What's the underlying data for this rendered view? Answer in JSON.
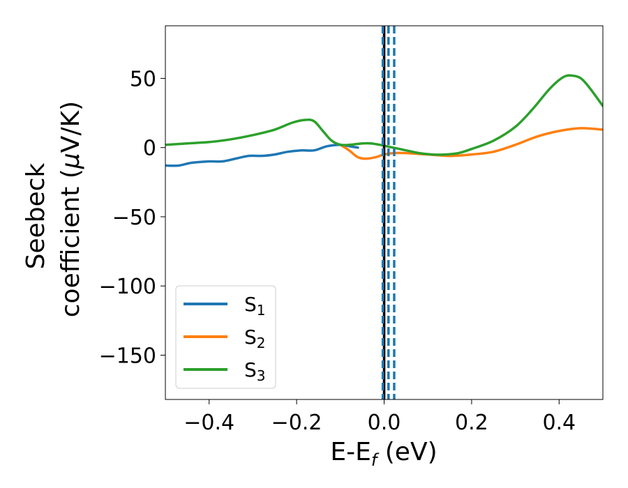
{
  "chart_data": {
    "type": "line",
    "xlabel": "E-E",
    "xlabel_sub": "f",
    "xlabel_unit": " (eV)",
    "ylabel_line1": "Seebeck",
    "ylabel_line2_prefix": "coefficient  (",
    "ylabel_mu": "μ",
    "ylabel_line2_suffix": "V/K)",
    "xlim": [
      -0.5,
      0.5
    ],
    "ylim": [
      -182,
      88
    ],
    "xticks": [
      -0.4,
      -0.2,
      0.0,
      0.2,
      0.4
    ],
    "xtick_labels": [
      "−0.4",
      "−0.2",
      "0.0",
      "0.2",
      "0.4"
    ],
    "yticks": [
      50,
      0,
      -50,
      -100,
      -150
    ],
    "ytick_labels": [
      "50",
      "0",
      "−50",
      "−100",
      "−150"
    ],
    "grid": false,
    "legend_position": "lower-left",
    "vlines": [
      {
        "x": 0.0,
        "style": "solid",
        "color": "#000000"
      },
      {
        "x": -0.003,
        "style": "dashed",
        "color": "#1f77b4"
      },
      {
        "x": 0.01,
        "style": "dashed",
        "color": "#1f77b4"
      },
      {
        "x": 0.023,
        "style": "dashed",
        "color": "#1f77b4"
      }
    ],
    "series": [
      {
        "name": "S",
        "sub": "1",
        "color": "#1f77b4",
        "x": [
          -0.5,
          -0.47,
          -0.44,
          -0.4,
          -0.37,
          -0.34,
          -0.31,
          -0.28,
          -0.25,
          -0.22,
          -0.19,
          -0.16,
          -0.13,
          -0.1,
          -0.08,
          -0.06
        ],
        "y": [
          -13,
          -13,
          -11,
          -10,
          -10,
          -8,
          -6,
          -6,
          -5,
          -3,
          -2,
          -2,
          1,
          2,
          1,
          0
        ]
      },
      {
        "name": "S",
        "sub": "2",
        "color": "#ff7f0e",
        "x": [
          -0.1,
          -0.08,
          -0.06,
          -0.04,
          -0.02,
          0.0,
          0.02,
          0.05,
          0.1,
          0.15,
          0.2,
          0.25,
          0.3,
          0.35,
          0.4,
          0.45,
          0.5
        ],
        "y": [
          2,
          -2,
          -7,
          -8,
          -7,
          -5,
          -4,
          -4,
          -5,
          -6,
          -5,
          -3,
          2,
          8,
          12,
          14,
          13
        ]
      },
      {
        "name": "S",
        "sub": "3",
        "color": "#2ca02c",
        "x": [
          -0.5,
          -0.45,
          -0.4,
          -0.35,
          -0.3,
          -0.25,
          -0.21,
          -0.18,
          -0.16,
          -0.14,
          -0.12,
          -0.1,
          -0.08,
          -0.05,
          -0.03,
          -0.01,
          0.02,
          0.05,
          0.08,
          0.11,
          0.14,
          0.17,
          0.2,
          0.25,
          0.3,
          0.34,
          0.38,
          0.41,
          0.43,
          0.45,
          0.47,
          0.5
        ],
        "y": [
          2,
          3,
          4,
          6,
          9,
          13,
          18,
          20,
          19,
          12,
          5,
          2,
          2,
          3,
          3,
          2,
          0,
          -2,
          -4,
          -5,
          -5,
          -4,
          -1,
          5,
          15,
          28,
          43,
          51,
          52,
          50,
          43,
          30
        ]
      }
    ]
  }
}
